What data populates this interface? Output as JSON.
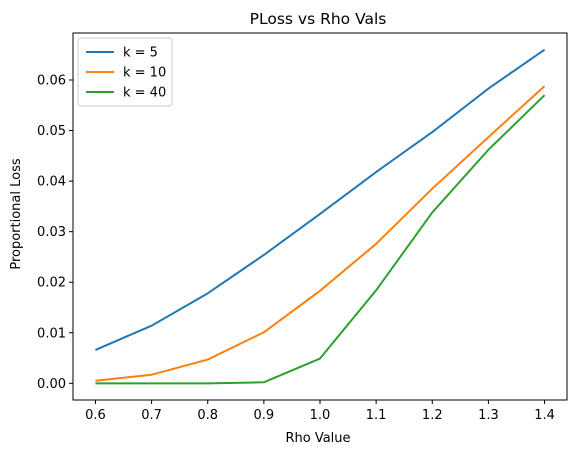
{
  "chart_data": {
    "type": "line",
    "title": "PLoss vs Rho Vals",
    "xlabel": "Rho Value",
    "ylabel": "Proportional Loss",
    "x": [
      0.6,
      0.7,
      0.8,
      0.9,
      1.0,
      1.1,
      1.2,
      1.3,
      1.4
    ],
    "xlim": [
      0.56,
      1.44
    ],
    "ylim": [
      -0.0033,
      0.0693
    ],
    "xticks": [
      "0.6",
      "0.7",
      "0.8",
      "0.9",
      "1.0",
      "1.1",
      "1.2",
      "1.3",
      "1.4"
    ],
    "yticks": [
      "0.00",
      "0.01",
      "0.02",
      "0.03",
      "0.04",
      "0.05",
      "0.06"
    ],
    "grid": false,
    "legend_position": "top-left",
    "series": [
      {
        "name": "k = 5",
        "color": "#1f77b4",
        "values": [
          0.0066,
          0.0114,
          0.0178,
          0.0254,
          0.0335,
          0.0418,
          0.0497,
          0.0583,
          0.066
        ]
      },
      {
        "name": "k = 10",
        "color": "#ff7f0e",
        "values": [
          0.0005,
          0.0017,
          0.0047,
          0.0101,
          0.0183,
          0.0276,
          0.0385,
          0.0487,
          0.0588
        ]
      },
      {
        "name": "k = 40",
        "color": "#2ca02c",
        "values": [
          0.0,
          0.0,
          0.0,
          0.0002,
          0.0049,
          0.0184,
          0.0338,
          0.0462,
          0.057
        ]
      }
    ]
  }
}
